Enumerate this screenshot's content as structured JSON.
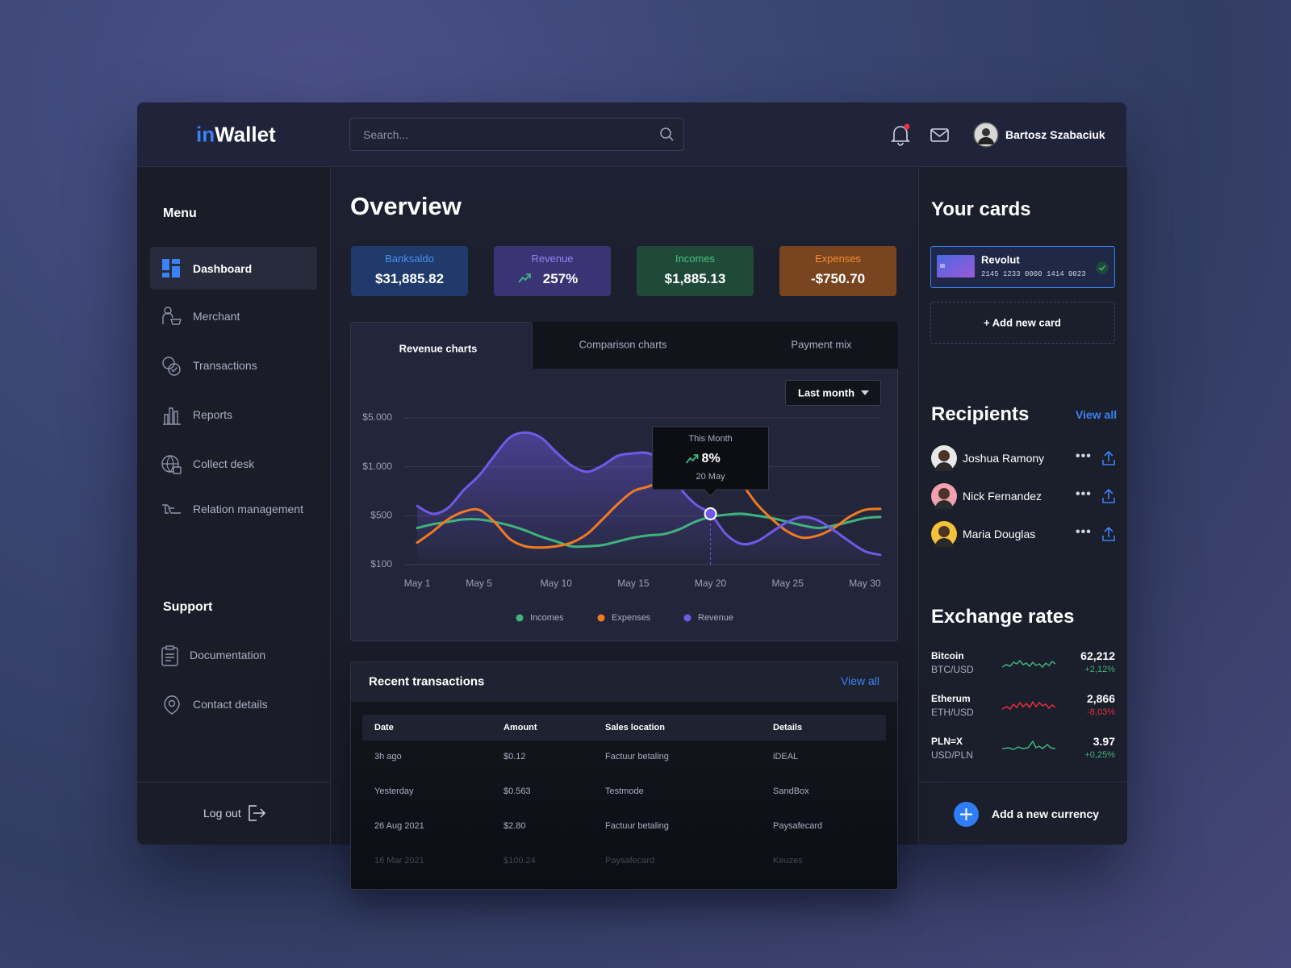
{
  "header": {
    "logo_accent": "in",
    "logo_rest": "Wallet",
    "search_placeholder": "Search...",
    "user_name": "Bartosz Szabaciuk"
  },
  "sidebar": {
    "menu_title": "Menu",
    "menu": [
      "Dashboard",
      "Merchant",
      "Transactions",
      "Reports",
      "Collect desk",
      "Relation management"
    ],
    "support_title": "Support",
    "support": [
      "Documentation",
      "Contact details"
    ],
    "logout": "Log out"
  },
  "overview": {
    "title": "Overview",
    "stats": [
      {
        "label": "Banksaldo",
        "value": "$31,885.82"
      },
      {
        "label": "Revenue",
        "value": "257%"
      },
      {
        "label": "Incomes",
        "value": "$1,885.13"
      },
      {
        "label": "Expenses",
        "value": "-$750.70"
      }
    ]
  },
  "chart_tabs": [
    "Revenue charts",
    "Comparison charts",
    "Payment mix"
  ],
  "chart_filter": "Last month",
  "chart_tooltip": {
    "title": "This Month",
    "value": "8%",
    "date": "20 May"
  },
  "chart_data": {
    "type": "line",
    "x": [
      1,
      2,
      3,
      4,
      5,
      6,
      7,
      8,
      9,
      10,
      11,
      12,
      13,
      14,
      15,
      16,
      17,
      18,
      19,
      20,
      21,
      22,
      23,
      24,
      25,
      26,
      27,
      28,
      29,
      30,
      31
    ],
    "xlim": [
      0.16,
      31
    ],
    "xticks": [
      {
        "value": 1,
        "label": "May 1"
      },
      {
        "value": 5,
        "label": "May 5"
      },
      {
        "value": 10,
        "label": "May 10"
      },
      {
        "value": 15,
        "label": "May 15"
      },
      {
        "value": 20,
        "label": "May 20"
      },
      {
        "value": 25,
        "label": "May 25"
      },
      {
        "value": 30,
        "label": "May 30"
      }
    ],
    "ylim": [
      100,
      5000
    ],
    "yticks": [
      {
        "value": 100,
        "label": "$100"
      },
      {
        "value": 500,
        "label": "$500"
      },
      {
        "value": 1000,
        "label": "$1.000"
      },
      {
        "value": 5000,
        "label": "$5.000"
      }
    ],
    "grid": true,
    "series": [
      {
        "name": "Incomes",
        "color": "#3fb37f",
        "values": [
          400,
          430,
          450,
          470,
          470,
          450,
          420,
          380,
          330,
          290,
          250,
          250,
          260,
          290,
          320,
          340,
          350,
          390,
          450,
          490,
          510,
          520,
          500,
          480,
          450,
          420,
          400,
          420,
          450,
          480,
          490
        ]
      },
      {
        "name": "Expenses",
        "color": "#f07a22",
        "values": [
          280,
          370,
          470,
          540,
          560,
          450,
          310,
          250,
          240,
          250,
          280,
          350,
          470,
          620,
          750,
          800,
          870,
          970,
          1300,
          1500,
          990,
          830,
          620,
          470,
          370,
          320,
          340,
          400,
          490,
          560,
          570
        ]
      },
      {
        "name": "Revenue",
        "color": "#7059e6",
        "values": [
          600,
          520,
          580,
          760,
          910,
          1900,
          3400,
          3800,
          3400,
          2200,
          1100,
          950,
          1100,
          1900,
          2100,
          2100,
          1300,
          790,
          620,
          520,
          350,
          270,
          290,
          370,
          450,
          490,
          460,
          380,
          290,
          210,
          180
        ]
      }
    ]
  },
  "transactions": {
    "title": "Recent transactions",
    "view_all": "View all",
    "columns": [
      "Date",
      "Amount",
      "Sales location",
      "Details"
    ],
    "rows": [
      [
        "3h ago",
        "$0.12",
        "Factuur betaling",
        "iDEAL"
      ],
      [
        "Yesterday",
        "$0.563",
        "Testmode",
        "SandBox"
      ],
      [
        "26 Aug 2021",
        "$2.80",
        "Factuur betaling",
        "Paysafecard"
      ],
      [
        "16 Mar 2021",
        "$100.24",
        "Paysafecard",
        "Keuzes"
      ]
    ]
  },
  "cards": {
    "title": "Your cards",
    "card": {
      "name": "Revolut",
      "number": "2145 1233 0000 1414 0023"
    },
    "add": "+ Add new card"
  },
  "recipients": {
    "title": "Recipients",
    "view_all": "View all",
    "people": [
      "Joshua Ramony",
      "Nick Fernandez",
      "Maria Douglas"
    ]
  },
  "exchange": {
    "title": "Exchange rates",
    "rates": [
      {
        "name": "Bitcoin",
        "pair": "BTC/USD",
        "value": "62,212",
        "change": "+2,12%"
      },
      {
        "name": "Etherum",
        "pair": "ETH/USD",
        "value": "2,866",
        "change": "-8,03%"
      },
      {
        "name": "PLN=X",
        "pair": "USD/PLN",
        "value": "3.97",
        "change": "+0,25%"
      }
    ],
    "add": "Add a new currency"
  }
}
